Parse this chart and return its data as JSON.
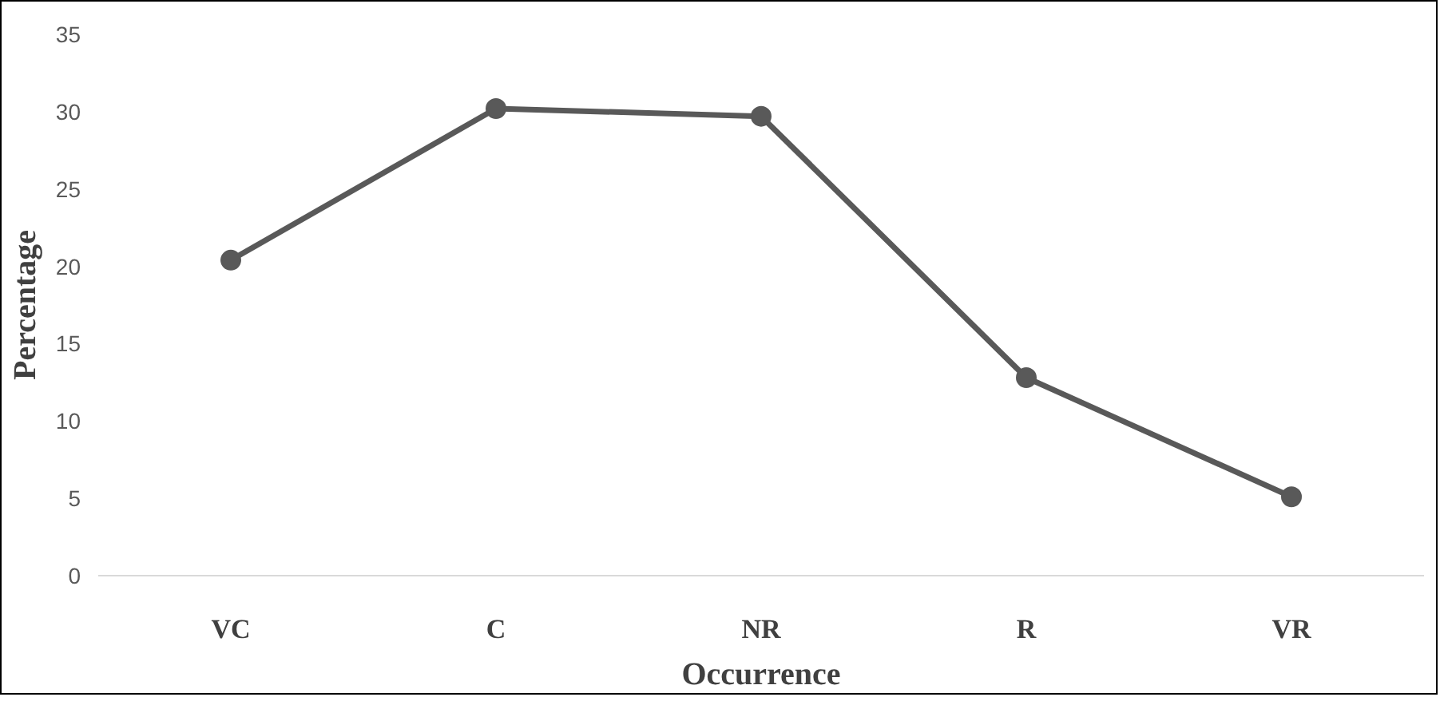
{
  "chart_data": {
    "type": "line",
    "xlabel": "Occurrence",
    "ylabel": "Percentage",
    "categories": [
      "VC",
      "C",
      "NR",
      "R",
      "VR"
    ],
    "series": [
      {
        "color": "#595959",
        "values": [
          20.4,
          30.2,
          29.7,
          12.8,
          5.1
        ]
      }
    ],
    "ylim": [
      0,
      35
    ],
    "yticks": [
      0,
      5,
      10,
      15,
      20,
      25,
      30,
      35
    ],
    "grid": false,
    "marker": "circle",
    "line_style": "solid"
  }
}
